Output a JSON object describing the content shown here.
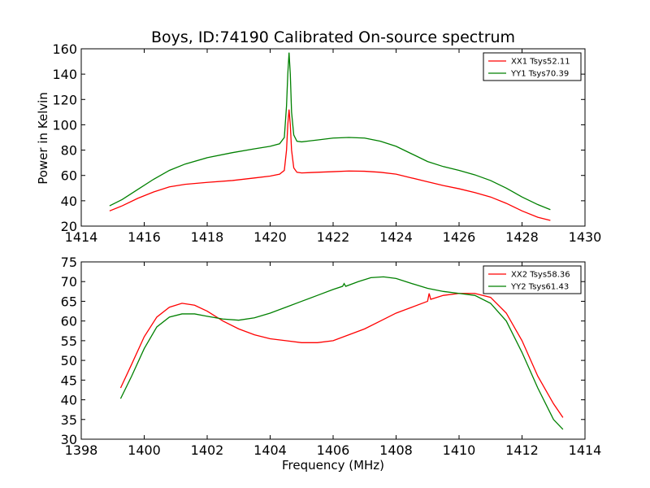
{
  "chart_data": [
    {
      "type": "line",
      "title": "Boys, ID:74190 Calibrated On-source spectrum",
      "xlabel": "",
      "ylabel": "Power in Kelvin",
      "xlim": [
        1414,
        1430
      ],
      "ylim": [
        20,
        160
      ],
      "xticks": [
        1414,
        1416,
        1418,
        1420,
        1422,
        1424,
        1426,
        1428,
        1430
      ],
      "yticks": [
        20,
        40,
        60,
        80,
        100,
        120,
        140,
        160
      ],
      "grid": false,
      "legend": "top-right",
      "series": [
        {
          "name": "XX1 Tsys52.11",
          "color": "#ff0000",
          "x": [
            1414.9,
            1415.3,
            1415.8,
            1416.3,
            1416.8,
            1417.3,
            1418.0,
            1418.8,
            1419.5,
            1420.0,
            1420.3,
            1420.45,
            1420.52,
            1420.56,
            1420.6,
            1420.64,
            1420.68,
            1420.75,
            1420.85,
            1421.0,
            1421.5,
            1422.0,
            1422.5,
            1423.0,
            1423.5,
            1424.0,
            1424.5,
            1425.0,
            1425.5,
            1426.0,
            1426.5,
            1427.0,
            1427.5,
            1428.0,
            1428.5,
            1428.9
          ],
          "y": [
            32,
            36,
            42,
            47,
            51,
            53,
            54.5,
            56,
            58,
            59.5,
            61,
            64,
            80,
            100,
            112,
            100,
            80,
            66,
            62.5,
            62,
            62.5,
            63,
            63.5,
            63.3,
            62.5,
            61,
            58,
            55,
            52,
            49.5,
            46.5,
            43,
            38,
            32,
            27,
            24.5
          ]
        },
        {
          "name": "YY1 Tsys70.39",
          "color": "#008000",
          "x": [
            1414.9,
            1415.3,
            1415.8,
            1416.3,
            1416.8,
            1417.3,
            1418.0,
            1418.8,
            1419.5,
            1420.0,
            1420.3,
            1420.45,
            1420.52,
            1420.56,
            1420.6,
            1420.64,
            1420.68,
            1420.75,
            1420.85,
            1421.0,
            1421.5,
            1422.0,
            1422.5,
            1423.0,
            1423.5,
            1424.0,
            1424.5,
            1425.0,
            1425.5,
            1426.0,
            1426.5,
            1427.0,
            1427.5,
            1428.0,
            1428.5,
            1428.9
          ],
          "y": [
            36,
            41,
            49,
            57,
            64,
            69,
            74,
            78,
            81,
            83,
            85,
            90,
            115,
            140,
            157,
            140,
            110,
            92,
            87,
            86.5,
            88,
            89.5,
            90,
            89.5,
            87,
            83,
            77,
            71,
            67,
            64,
            60.5,
            56,
            50,
            43,
            37,
            33
          ]
        }
      ]
    },
    {
      "type": "line",
      "title": "",
      "xlabel": "Frequency (MHz)",
      "ylabel": "",
      "xlim": [
        1398,
        1414
      ],
      "ylim": [
        30,
        75
      ],
      "xticks": [
        1398,
        1400,
        1402,
        1404,
        1406,
        1408,
        1410,
        1412,
        1414
      ],
      "yticks": [
        30,
        35,
        40,
        45,
        50,
        55,
        60,
        65,
        70,
        75
      ],
      "grid": false,
      "legend": "top-right",
      "series": [
        {
          "name": "XX2 Tsys58.36",
          "color": "#ff0000",
          "x": [
            1399.25,
            1399.6,
            1400.0,
            1400.4,
            1400.8,
            1401.2,
            1401.6,
            1402.0,
            1402.5,
            1403.0,
            1403.5,
            1404.0,
            1404.5,
            1405.0,
            1405.5,
            1406.0,
            1406.5,
            1407.0,
            1407.5,
            1408.0,
            1408.5,
            1409.0,
            1409.05,
            1409.1,
            1409.5,
            1410.0,
            1410.5,
            1411.0,
            1411.5,
            1412.0,
            1412.5,
            1413.0,
            1413.3
          ],
          "y": [
            43,
            49,
            56,
            61,
            63.5,
            64.5,
            64,
            62.5,
            60,
            58,
            56.5,
            55.5,
            55,
            54.5,
            54.5,
            55,
            56.5,
            58,
            60,
            62,
            63.5,
            65,
            67,
            65.5,
            66.5,
            67,
            67,
            66,
            62,
            55,
            46,
            39,
            35.5
          ]
        },
        {
          "name": "YY2 Tsys61.43",
          "color": "#008000",
          "x": [
            1399.25,
            1399.6,
            1400.0,
            1400.4,
            1400.8,
            1401.2,
            1401.6,
            1402.0,
            1402.5,
            1403.0,
            1403.5,
            1404.0,
            1404.5,
            1405.0,
            1405.5,
            1406.0,
            1406.3,
            1406.35,
            1406.4,
            1406.8,
            1407.2,
            1407.6,
            1408.0,
            1408.5,
            1409.0,
            1409.5,
            1410.0,
            1410.5,
            1411.0,
            1411.5,
            1412.0,
            1412.5,
            1413.0,
            1413.3
          ],
          "y": [
            40.3,
            46,
            53,
            58.5,
            61,
            61.8,
            61.8,
            61.2,
            60.5,
            60.2,
            60.8,
            62,
            63.5,
            65,
            66.5,
            68,
            68.8,
            69.5,
            68.8,
            70,
            71,
            71.2,
            70.8,
            69.5,
            68.3,
            67.5,
            67,
            66.5,
            64.5,
            60,
            52,
            43,
            35,
            32.5
          ]
        }
      ]
    }
  ]
}
